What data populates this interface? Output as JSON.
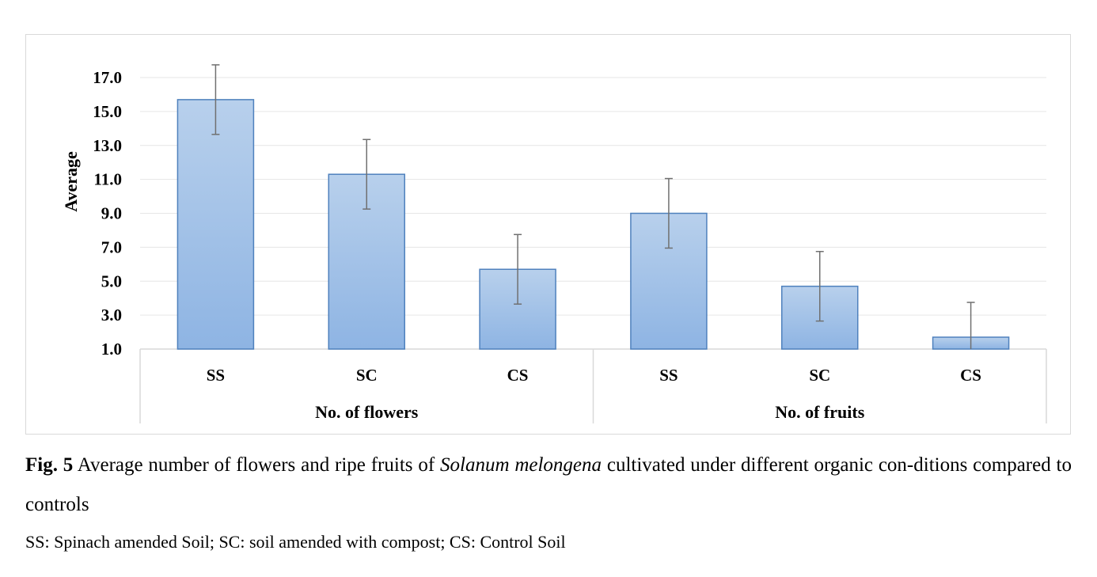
{
  "chart_data": {
    "type": "bar",
    "ylabel": "Average",
    "ylim": [
      1.0,
      17.0
    ],
    "yticks": [
      "1.0",
      "3.0",
      "5.0",
      "7.0",
      "9.0",
      "11.0",
      "13.0",
      "15.0",
      "17.0"
    ],
    "groups": [
      {
        "label": "No. of flowers",
        "categories": [
          "SS",
          "SC",
          "CS"
        ],
        "values": [
          15.7,
          11.3,
          5.7
        ],
        "errors": [
          2.05,
          2.05,
          2.05
        ]
      },
      {
        "label": "No. of fruits",
        "categories": [
          "SS",
          "SC",
          "CS"
        ],
        "values": [
          9.0,
          4.7,
          1.7
        ],
        "errors": [
          2.05,
          2.05,
          2.05
        ]
      }
    ],
    "colors": {
      "bar_top": "#b8d0ec",
      "bar_bottom": "#8eb4e3",
      "bar_stroke": "#4f81bd",
      "error": "#707070",
      "grid": "#e6e6e6",
      "axis": "#d9d9d9"
    }
  },
  "caption": {
    "fig_label": "Fig. 5",
    "text_before": " Average number of flowers and ripe fruits of ",
    "species": "Solanum melongena",
    "text_after": " cultivated under different organic con-ditions compared to controls",
    "legend": "SS: Spinach amended Soil; SC: soil amended with compost; CS: Control Soil"
  }
}
